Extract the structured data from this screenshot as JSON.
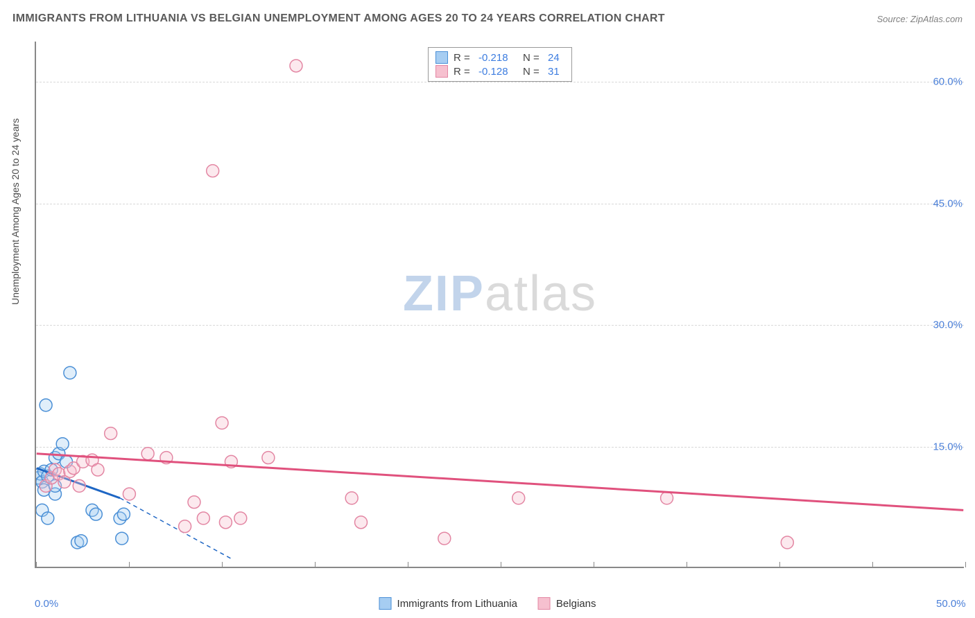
{
  "title": "IMMIGRANTS FROM LITHUANIA VS BELGIAN UNEMPLOYMENT AMONG AGES 20 TO 24 YEARS CORRELATION CHART",
  "source_label": "Source: ZipAtlas.com",
  "y_axis_label": "Unemployment Among Ages 20 to 24 years",
  "watermark": {
    "zip": "ZIP",
    "atlas": "atlas"
  },
  "legend_top": {
    "series": [
      {
        "swatch_fill": "#a6cdf2",
        "swatch_border": "#4a8fd6",
        "r_label": "R =",
        "r_value": "-0.218",
        "n_label": "N =",
        "n_value": "24"
      },
      {
        "swatch_fill": "#f6c0cf",
        "swatch_border": "#e386a3",
        "r_label": "R =",
        "r_value": "-0.128",
        "n_label": "N =",
        "n_value": "31"
      }
    ]
  },
  "legend_bottom": {
    "items": [
      {
        "swatch_fill": "#a6cdf2",
        "swatch_border": "#4a8fd6",
        "label": "Immigrants from Lithuania"
      },
      {
        "swatch_fill": "#f6c0cf",
        "swatch_border": "#e386a3",
        "label": "Belgians"
      }
    ]
  },
  "chart": {
    "type": "scatter",
    "background_color": "#ffffff",
    "grid_color": "#d8d8d8",
    "axis_color": "#888888",
    "xlim": [
      0,
      50
    ],
    "ylim": [
      0,
      65
    ],
    "x_ticks": [
      0,
      5,
      10,
      15,
      20,
      25,
      30,
      35,
      40,
      45,
      50
    ],
    "x_tick_labels": {
      "0": "0.0%",
      "50": "50.0%"
    },
    "y_gridlines": [
      15,
      30,
      45,
      60
    ],
    "y_tick_labels": {
      "15": "15.0%",
      "30": "30.0%",
      "45": "45.0%",
      "60": "60.0%"
    },
    "marker_radius": 9,
    "marker_fill_opacity": 0.35,
    "marker_stroke_width": 1.5,
    "series": [
      {
        "name": "Immigrants from Lithuania",
        "color_fill": "#a6cdf2",
        "color_stroke": "#4a8fd6",
        "trend_color": "#1e66c4",
        "trend_width": 3,
        "trend_solid": {
          "x1": 0,
          "y1": 12.2,
          "x2": 4.5,
          "y2": 8.5
        },
        "trend_dashed": {
          "x1": 4.5,
          "y1": 8.5,
          "x2": 10.5,
          "y2": 1.0
        },
        "points": [
          {
            "x": 0.1,
            "y": 11.0
          },
          {
            "x": 0.2,
            "y": 11.5
          },
          {
            "x": 0.3,
            "y": 10.5
          },
          {
            "x": 0.4,
            "y": 11.8
          },
          {
            "x": 0.4,
            "y": 9.5
          },
          {
            "x": 0.6,
            "y": 11.2
          },
          {
            "x": 0.8,
            "y": 12.0
          },
          {
            "x": 1.0,
            "y": 13.5
          },
          {
            "x": 1.0,
            "y": 9.0
          },
          {
            "x": 1.2,
            "y": 14.0
          },
          {
            "x": 1.4,
            "y": 15.2
          },
          {
            "x": 1.6,
            "y": 13.0
          },
          {
            "x": 1.8,
            "y": 24.0
          },
          {
            "x": 0.5,
            "y": 20.0
          },
          {
            "x": 2.2,
            "y": 3.0
          },
          {
            "x": 2.4,
            "y": 3.2
          },
          {
            "x": 3.0,
            "y": 7.0
          },
          {
            "x": 3.2,
            "y": 6.5
          },
          {
            "x": 4.5,
            "y": 6.0
          },
          {
            "x": 4.7,
            "y": 6.5
          },
          {
            "x": 4.6,
            "y": 3.5
          },
          {
            "x": 0.3,
            "y": 7.0
          },
          {
            "x": 0.6,
            "y": 6.0
          },
          {
            "x": 1.0,
            "y": 10.0
          }
        ]
      },
      {
        "name": "Belgians",
        "color_fill": "#f6c0cf",
        "color_stroke": "#e386a3",
        "trend_color": "#e0517d",
        "trend_width": 3,
        "trend_solid": {
          "x1": 0,
          "y1": 14.0,
          "x2": 50,
          "y2": 7.0
        },
        "points": [
          {
            "x": 0.5,
            "y": 10.0
          },
          {
            "x": 0.8,
            "y": 11.0
          },
          {
            "x": 1.0,
            "y": 12.0
          },
          {
            "x": 1.2,
            "y": 11.5
          },
          {
            "x": 1.5,
            "y": 10.5
          },
          {
            "x": 1.8,
            "y": 11.8
          },
          {
            "x": 2.0,
            "y": 12.2
          },
          {
            "x": 2.3,
            "y": 10.0
          },
          {
            "x": 2.5,
            "y": 13.0
          },
          {
            "x": 3.0,
            "y": 13.2
          },
          {
            "x": 3.3,
            "y": 12.0
          },
          {
            "x": 4.0,
            "y": 16.5
          },
          {
            "x": 5.0,
            "y": 9.0
          },
          {
            "x": 6.0,
            "y": 14.0
          },
          {
            "x": 7.0,
            "y": 13.5
          },
          {
            "x": 8.0,
            "y": 5.0
          },
          {
            "x": 8.5,
            "y": 8.0
          },
          {
            "x": 9.0,
            "y": 6.0
          },
          {
            "x": 10.0,
            "y": 17.8
          },
          {
            "x": 10.2,
            "y": 5.5
          },
          {
            "x": 10.5,
            "y": 13.0
          },
          {
            "x": 11.0,
            "y": 6.0
          },
          {
            "x": 12.5,
            "y": 13.5
          },
          {
            "x": 17.0,
            "y": 8.5
          },
          {
            "x": 17.5,
            "y": 5.5
          },
          {
            "x": 22.0,
            "y": 3.5
          },
          {
            "x": 26.0,
            "y": 8.5
          },
          {
            "x": 34.0,
            "y": 8.5
          },
          {
            "x": 40.5,
            "y": 3.0
          },
          {
            "x": 9.5,
            "y": 49.0
          },
          {
            "x": 14.0,
            "y": 62.0
          }
        ]
      }
    ]
  }
}
